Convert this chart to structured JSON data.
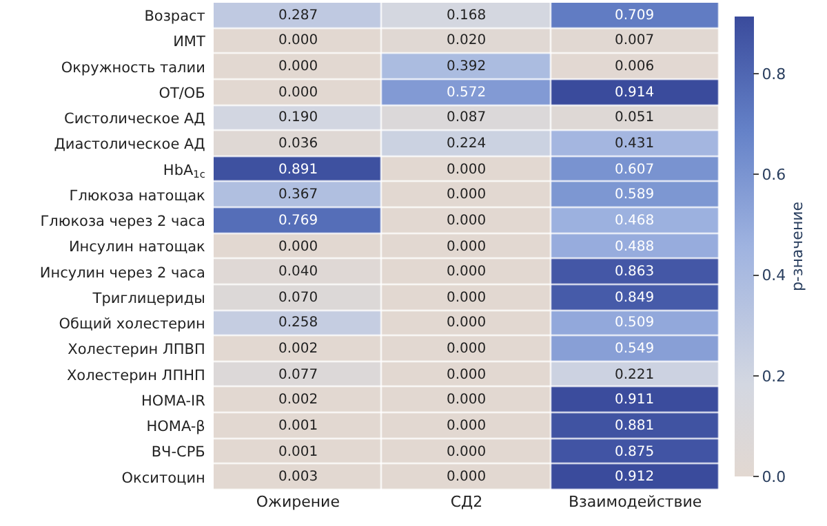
{
  "chart_data": {
    "type": "heatmap",
    "clabel": "p-значение",
    "categories": [
      "Ожирение",
      "СД2",
      "Взаимодействие"
    ],
    "y_categories": [
      "Возраст",
      "ИМТ",
      "Окружность талии",
      "ОТ/ОБ",
      "Систолическое АД",
      "Диастолическое АД",
      "HbA$_{1c}$",
      "Глюкоза натощак",
      "Глюкоза через 2 часа",
      "Инсулин натощак",
      "Инсулин через 2 часа",
      "Триглицериды",
      "Общий холестерин",
      "Холестерин ЛПВП",
      "Холестерин ЛПНП",
      "HOMA-IR",
      "HOMA-β",
      "ВЧ-СРБ",
      "Окситоцин"
    ],
    "cells": [
      [
        0.287,
        0.168,
        0.709
      ],
      [
        0.0,
        0.02,
        0.007
      ],
      [
        0.0,
        0.392,
        0.006
      ],
      [
        0.0,
        0.572,
        0.914
      ],
      [
        0.19,
        0.087,
        0.051
      ],
      [
        0.036,
        0.224,
        0.431
      ],
      [
        0.891,
        0.0,
        0.607
      ],
      [
        0.367,
        0.0,
        0.589
      ],
      [
        0.769,
        0.0,
        0.468
      ],
      [
        0.0,
        0.0,
        0.488
      ],
      [
        0.04,
        0.0,
        0.863
      ],
      [
        0.07,
        0.0,
        0.849
      ],
      [
        0.258,
        0.0,
        0.509
      ],
      [
        0.002,
        0.0,
        0.549
      ],
      [
        0.077,
        0.0,
        0.221
      ],
      [
        0.002,
        0.0,
        0.911
      ],
      [
        0.001,
        0.0,
        0.881
      ],
      [
        0.001,
        0.0,
        0.875
      ],
      [
        0.003,
        0.0,
        0.912
      ]
    ],
    "cell_labels": [
      [
        "0.287",
        "0.168",
        "0.709"
      ],
      [
        "0.000",
        "0.020",
        "0.007"
      ],
      [
        "0.000",
        "0.392",
        "0.006"
      ],
      [
        "0.000",
        "0.572",
        "0.914"
      ],
      [
        "0.190",
        "0.087",
        "0.051"
      ],
      [
        "0.036",
        "0.224",
        "0.431"
      ],
      [
        "0.891",
        "0.000",
        "0.607"
      ],
      [
        "0.367",
        "0.000",
        "0.589"
      ],
      [
        "0.769",
        "0.000",
        "0.468"
      ],
      [
        "0.000",
        "0.000",
        "0.488"
      ],
      [
        "0.040",
        "0.000",
        "0.863"
      ],
      [
        "0.070",
        "0.000",
        "0.849"
      ],
      [
        "0.258",
        "0.000",
        "0.509"
      ],
      [
        "0.002",
        "0.000",
        "0.549"
      ],
      [
        "0.077",
        "0.000",
        "0.221"
      ],
      [
        "0.002",
        "0.000",
        "0.911"
      ],
      [
        "0.001",
        "0.000",
        "0.881"
      ],
      [
        "0.001",
        "0.000",
        "0.875"
      ],
      [
        "0.003",
        "0.000",
        "0.912"
      ]
    ],
    "clim": [
      0,
      0.914
    ],
    "cticks": [
      {
        "value": 0,
        "label": "0.0"
      },
      {
        "value": 0.2,
        "label": "0.2"
      },
      {
        "value": 0.4,
        "label": "0.4"
      },
      {
        "value": 0.6,
        "label": "0.6"
      },
      {
        "value": 0.8,
        "label": "0.8"
      }
    ]
  }
}
